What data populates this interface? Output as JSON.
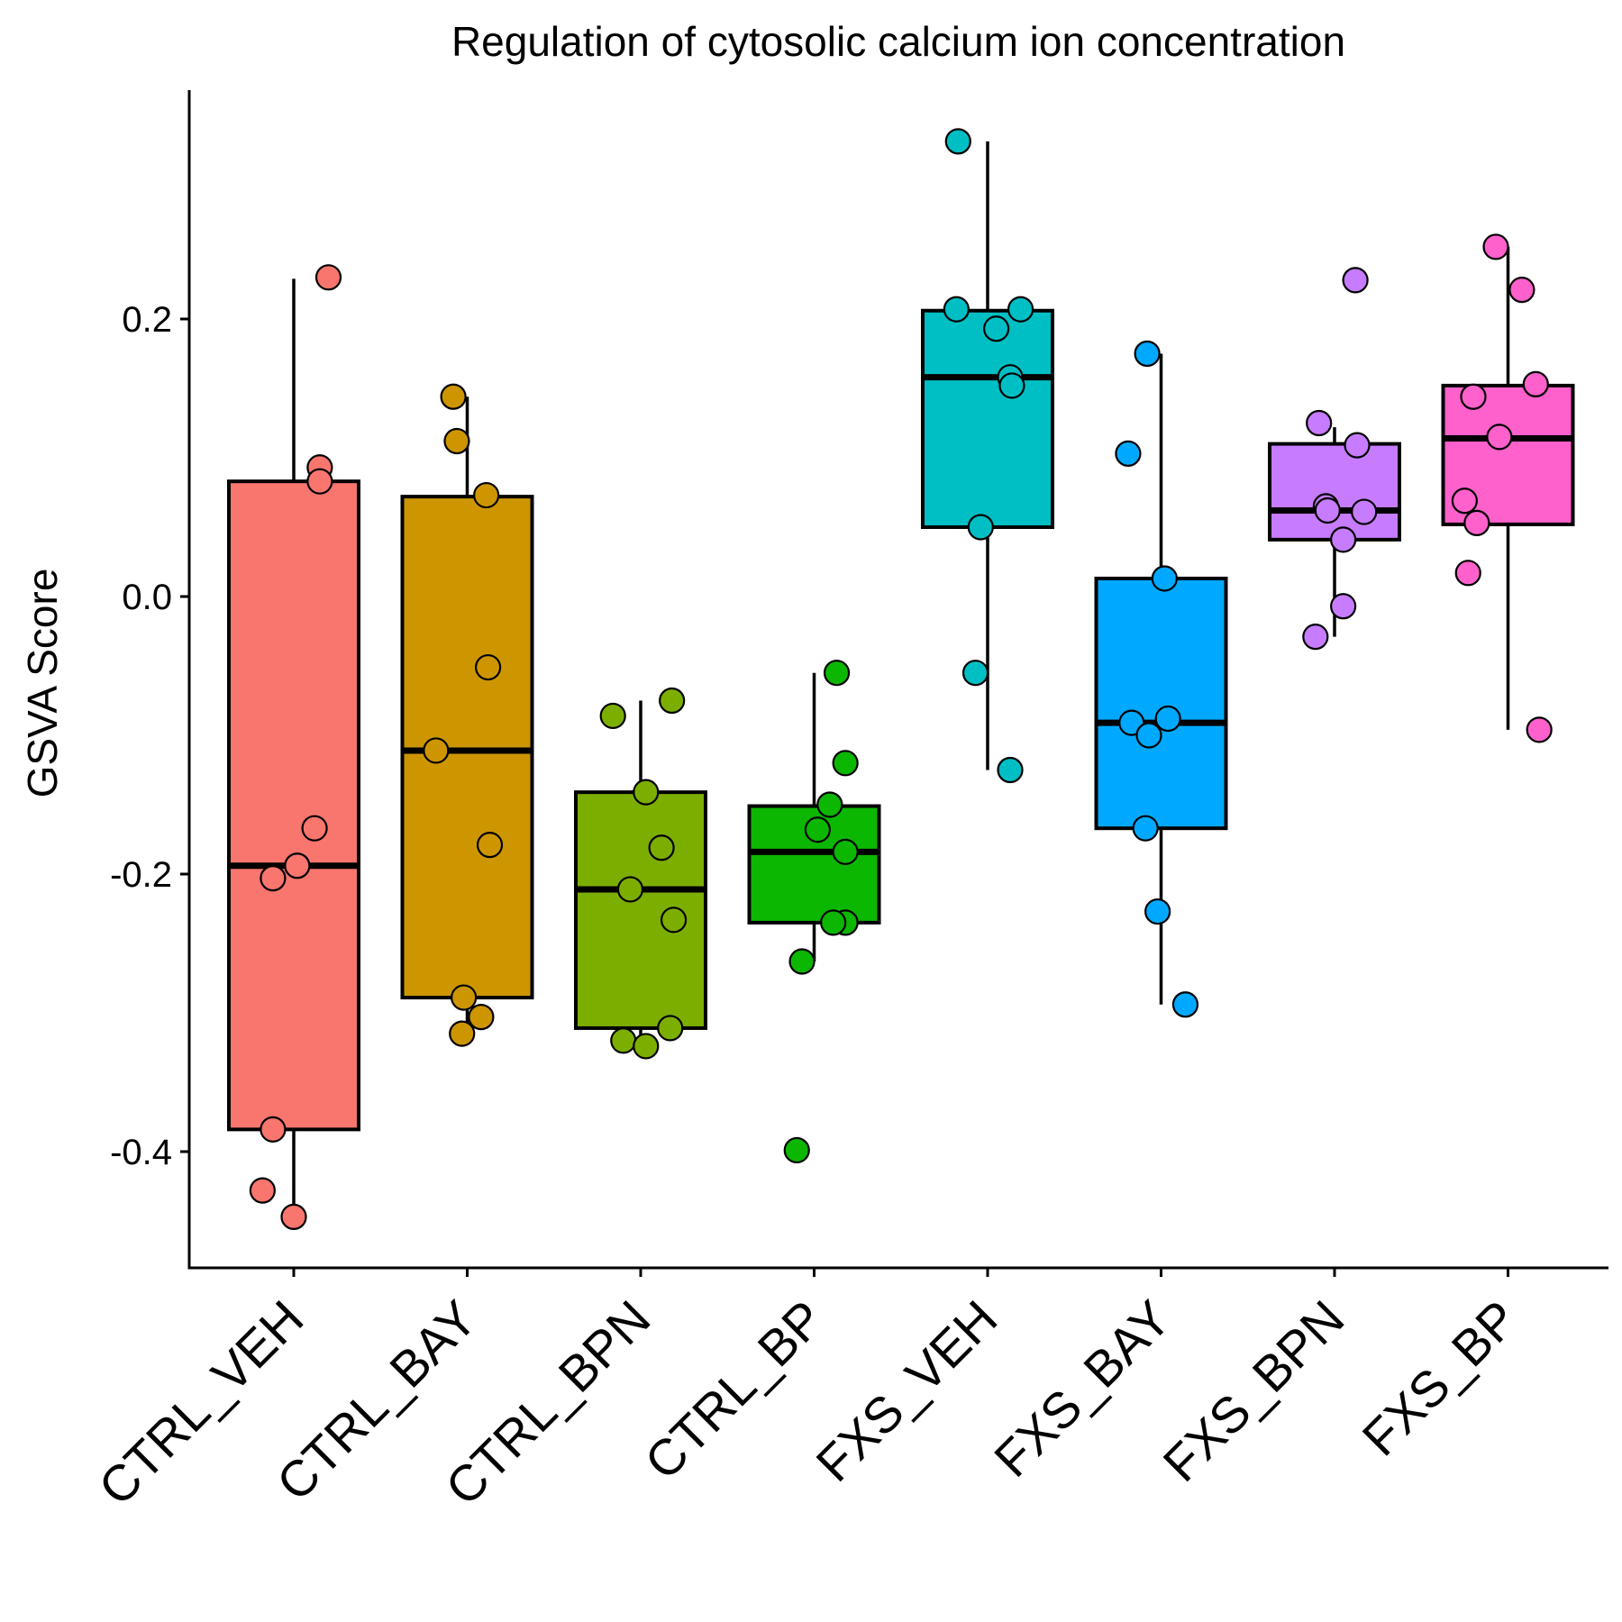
{
  "chart_data": {
    "type": "box",
    "title": "Regulation of cytosolic calcium ion concentration",
    "xlabel": "",
    "ylabel": "GSVA Score",
    "ylim": [
      -0.48,
      0.37
    ],
    "yticks": [
      {
        "value": 0.2,
        "label": "0.2"
      },
      {
        "value": 0.0,
        "label": "0.0"
      },
      {
        "value": -0.2,
        "label": "-0.2"
      },
      {
        "value": -0.4,
        "label": "-0.4"
      }
    ],
    "grid": false,
    "legend": "none",
    "categories": [
      "CTRL_VEH",
      "CTRL_BAY",
      "CTRL_BPN",
      "CTRL_BP",
      "FXS_VEH",
      "FXS_BAY",
      "FXS_BPN",
      "FXS_BP"
    ],
    "series": [
      {
        "category": "CTRL_VEH",
        "color": "#F8766D",
        "box": {
          "q1": -0.384,
          "median": -0.194,
          "q3": 0.083,
          "whisker_low": -0.447,
          "whisker_high": 0.229
        },
        "points": [
          [
            0.2,
            0.23
          ],
          [
            0.15,
            0.093
          ],
          [
            0.15,
            0.083
          ],
          [
            0.12,
            -0.167
          ],
          [
            0.02,
            -0.194
          ],
          [
            -0.12,
            -0.203
          ],
          [
            -0.12,
            -0.384
          ],
          [
            -0.18,
            -0.428
          ],
          [
            0.0,
            -0.447
          ]
        ]
      },
      {
        "category": "CTRL_BAY",
        "color": "#CD9600",
        "box": {
          "q1": -0.289,
          "median": -0.111,
          "q3": 0.072,
          "whisker_low": -0.315,
          "whisker_high": 0.144
        },
        "points": [
          [
            -0.08,
            0.144
          ],
          [
            -0.06,
            0.112
          ],
          [
            0.11,
            0.073
          ],
          [
            0.12,
            -0.051
          ],
          [
            -0.18,
            -0.111
          ],
          [
            0.13,
            -0.179
          ],
          [
            -0.02,
            -0.289
          ],
          [
            0.08,
            -0.303
          ],
          [
            -0.03,
            -0.315
          ]
        ]
      },
      {
        "category": "CTRL_BPN",
        "color": "#7CAE00",
        "box": {
          "q1": -0.311,
          "median": -0.211,
          "q3": -0.141,
          "whisker_low": -0.324,
          "whisker_high": -0.075
        },
        "points": [
          [
            0.18,
            -0.075
          ],
          [
            -0.16,
            -0.086
          ],
          [
            0.03,
            -0.141
          ],
          [
            0.12,
            -0.181
          ],
          [
            -0.06,
            -0.211
          ],
          [
            0.19,
            -0.233
          ],
          [
            0.17,
            -0.311
          ],
          [
            -0.1,
            -0.32
          ],
          [
            0.03,
            -0.324
          ]
        ]
      },
      {
        "category": "CTRL_BP",
        "color": "#0CB702",
        "box": {
          "q1": -0.235,
          "median": -0.184,
          "q3": -0.151,
          "whisker_low": -0.263,
          "whisker_high": -0.055
        },
        "points": [
          [
            0.13,
            -0.055
          ],
          [
            0.18,
            -0.12
          ],
          [
            0.09,
            -0.15
          ],
          [
            0.02,
            -0.168
          ],
          [
            0.18,
            -0.184
          ],
          [
            0.18,
            -0.235
          ],
          [
            0.11,
            -0.235
          ],
          [
            -0.07,
            -0.263
          ],
          [
            -0.1,
            -0.399
          ]
        ]
      },
      {
        "category": "FXS_VEH",
        "color": "#00BFC4",
        "box": {
          "q1": 0.05,
          "median": 0.158,
          "q3": 0.206,
          "whisker_low": -0.125,
          "whisker_high": 0.328
        },
        "points": [
          [
            -0.17,
            0.328
          ],
          [
            -0.18,
            0.207
          ],
          [
            0.19,
            0.207
          ],
          [
            0.05,
            0.193
          ],
          [
            0.13,
            0.158
          ],
          [
            0.14,
            0.152
          ],
          [
            -0.04,
            0.05
          ],
          [
            -0.07,
            -0.055
          ],
          [
            0.13,
            -0.125
          ]
        ]
      },
      {
        "category": "FXS_BAY",
        "color": "#00A9FF",
        "box": {
          "q1": -0.167,
          "median": -0.091,
          "q3": 0.013,
          "whisker_low": -0.294,
          "whisker_high": 0.175
        },
        "points": [
          [
            -0.08,
            0.175
          ],
          [
            -0.19,
            0.103
          ],
          [
            0.02,
            0.013
          ],
          [
            0.04,
            -0.088
          ],
          [
            -0.17,
            -0.091
          ],
          [
            -0.07,
            -0.1
          ],
          [
            -0.09,
            -0.167
          ],
          [
            -0.02,
            -0.227
          ],
          [
            0.14,
            -0.294
          ]
        ]
      },
      {
        "category": "FXS_BPN",
        "color": "#C77CFF",
        "box": {
          "q1": 0.041,
          "median": 0.062,
          "q3": 0.11,
          "whisker_low": -0.029,
          "whisker_high": 0.122
        },
        "points": [
          [
            0.12,
            0.228
          ],
          [
            -0.09,
            0.125
          ],
          [
            0.13,
            0.109
          ],
          [
            -0.05,
            0.065
          ],
          [
            -0.04,
            0.062
          ],
          [
            0.17,
            0.061
          ],
          [
            0.05,
            0.041
          ],
          [
            0.05,
            -0.007
          ],
          [
            -0.11,
            -0.029
          ]
        ]
      },
      {
        "category": "FXS_BP",
        "color": "#FF61CC",
        "box": {
          "q1": 0.052,
          "median": 0.114,
          "q3": 0.152,
          "whisker_low": -0.096,
          "whisker_high": 0.252
        },
        "points": [
          [
            -0.07,
            0.252
          ],
          [
            0.08,
            0.221
          ],
          [
            0.16,
            0.153
          ],
          [
            -0.2,
            0.144
          ],
          [
            -0.05,
            0.115
          ],
          [
            -0.25,
            0.069
          ],
          [
            -0.18,
            0.053
          ],
          [
            -0.23,
            0.017
          ],
          [
            0.18,
            -0.096
          ]
        ]
      }
    ]
  }
}
